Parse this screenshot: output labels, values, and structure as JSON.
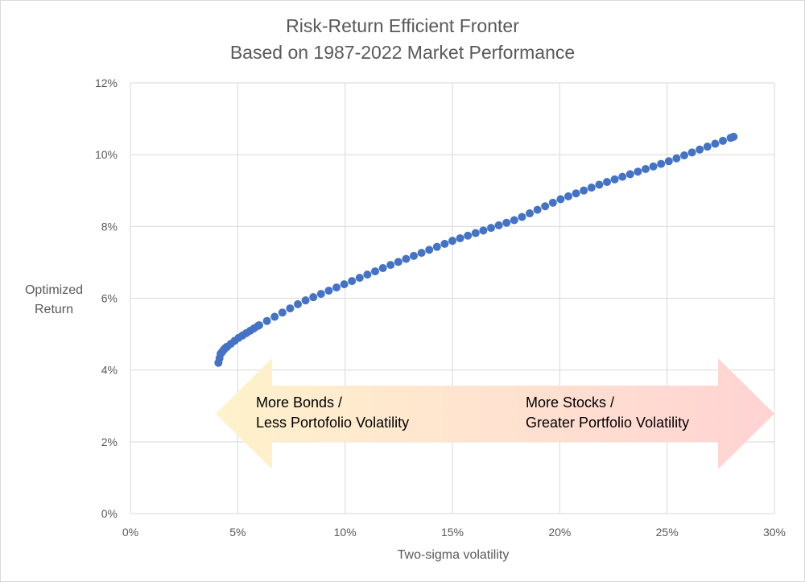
{
  "chart_data": {
    "type": "scatter",
    "title_lines": [
      "Risk-Return Efficient Fronter",
      "Based on 1987-2022 Market Performance"
    ],
    "xlabel": "Two-sigma volatility",
    "ylabel_lines": [
      "Optimized",
      "Return"
    ],
    "xlim": [
      0,
      30
    ],
    "ylim": [
      0,
      12
    ],
    "x_ticks": [
      0,
      5,
      10,
      15,
      20,
      25,
      30
    ],
    "y_ticks": [
      0,
      2,
      4,
      6,
      8,
      10,
      12
    ],
    "x_tick_labels": [
      "0%",
      "5%",
      "10%",
      "15%",
      "20%",
      "25%",
      "30%"
    ],
    "y_tick_labels": [
      "0%",
      "2%",
      "4%",
      "6%",
      "8%",
      "10%",
      "12%"
    ],
    "grid": true,
    "marker_color": "#4472c4",
    "frontier_anchors": [
      {
        "x": 4.1,
        "y": 4.2
      },
      {
        "x": 4.2,
        "y": 4.45
      },
      {
        "x": 4.4,
        "y": 4.6
      },
      {
        "x": 5.0,
        "y": 4.88
      },
      {
        "x": 6.0,
        "y": 5.25
      },
      {
        "x": 8.0,
        "y": 5.9
      },
      {
        "x": 10.0,
        "y": 6.4
      },
      {
        "x": 12.0,
        "y": 6.9
      },
      {
        "x": 15.0,
        "y": 7.6
      },
      {
        "x": 18.0,
        "y": 8.2
      },
      {
        "x": 20.0,
        "y": 8.75
      },
      {
        "x": 22.0,
        "y": 9.2
      },
      {
        "x": 25.0,
        "y": 9.8
      },
      {
        "x": 28.1,
        "y": 10.5
      }
    ],
    "annotation": {
      "left_lines": [
        "More Bonds /",
        "Less Portofolio Volatility"
      ],
      "right_lines": [
        "More Stocks /",
        "Greater Portfolio Volatility"
      ],
      "left_color": "#fff2cc",
      "right_color": "#ffd3d3"
    }
  }
}
